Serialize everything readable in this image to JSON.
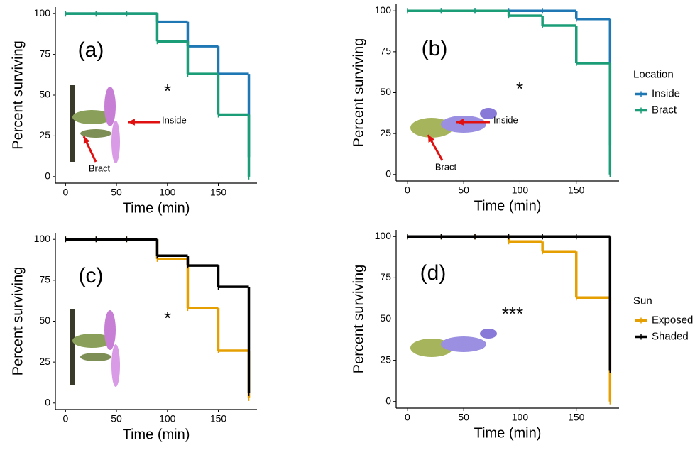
{
  "chart_data": [
    {
      "type": "step",
      "panel_label": "(a)",
      "significance": "*",
      "annotations": [
        "Inside",
        "Bract"
      ],
      "x_label": "Time (min)",
      "y_label": "Percent surviving",
      "x": [
        0,
        30,
        60,
        90,
        120,
        150,
        180
      ],
      "xlim": [
        -10,
        188
      ],
      "xticks": [
        0,
        50,
        100,
        150
      ],
      "ylim": [
        -4,
        104
      ],
      "yticks": [
        0,
        25,
        50,
        75,
        100
      ],
      "series": [
        {
          "color": "#1f78b4",
          "values": [
            100,
            100,
            100,
            95,
            80,
            63,
            12
          ]
        },
        {
          "color": "#1b9e77",
          "values": [
            100,
            100,
            100,
            83,
            63,
            38,
            0
          ]
        }
      ]
    },
    {
      "type": "step",
      "panel_label": "(b)",
      "significance": "*",
      "annotations": [
        "Inside",
        "Bract"
      ],
      "x_label": "Time (min)",
      "y_label": "Percent surviving",
      "x": [
        0,
        30,
        60,
        90,
        120,
        150,
        180
      ],
      "xlim": [
        -10,
        188
      ],
      "xticks": [
        0,
        50,
        100,
        150
      ],
      "ylim": [
        -4,
        104
      ],
      "yticks": [
        0,
        25,
        50,
        75,
        100
      ],
      "legend": "right",
      "legend_title": "Location",
      "series": [
        {
          "name": "Inside",
          "color": "#1f78b4",
          "values": [
            100,
            100,
            100,
            100,
            100,
            95,
            18
          ]
        },
        {
          "name": "Bract",
          "color": "#1b9e77",
          "values": [
            100,
            100,
            100,
            97,
            91,
            68,
            0
          ]
        }
      ]
    },
    {
      "type": "step",
      "panel_label": "(c)",
      "significance": "*",
      "x_label": "Time (min)",
      "y_label": "Percent surviving",
      "x": [
        0,
        30,
        60,
        90,
        120,
        150,
        180
      ],
      "xlim": [
        -10,
        188
      ],
      "xticks": [
        0,
        50,
        100,
        150
      ],
      "ylim": [
        -4,
        104
      ],
      "yticks": [
        0,
        25,
        50,
        75,
        100
      ],
      "series": [
        {
          "color": "#e69f00",
          "values": [
            100,
            100,
            100,
            88,
            58,
            32,
            3
          ]
        },
        {
          "color": "#000000",
          "values": [
            100,
            100,
            100,
            90,
            84,
            71,
            6
          ]
        }
      ]
    },
    {
      "type": "step",
      "panel_label": "(d)",
      "significance": "***",
      "x_label": "Time (min)",
      "y_label": "Percent surviving",
      "x": [
        0,
        30,
        60,
        90,
        120,
        150,
        180
      ],
      "xlim": [
        -10,
        188
      ],
      "xticks": [
        0,
        50,
        100,
        150
      ],
      "ylim": [
        -4,
        104
      ],
      "yticks": [
        0,
        25,
        50,
        75,
        100
      ],
      "legend": "right",
      "legend_title": "Sun",
      "series": [
        {
          "name": "Exposed",
          "color": "#e69f00",
          "values": [
            100,
            100,
            100,
            97,
            91,
            63,
            0
          ]
        },
        {
          "name": "Shaded",
          "color": "#000000",
          "values": [
            100,
            100,
            100,
            100,
            100,
            100,
            19
          ]
        }
      ]
    }
  ]
}
